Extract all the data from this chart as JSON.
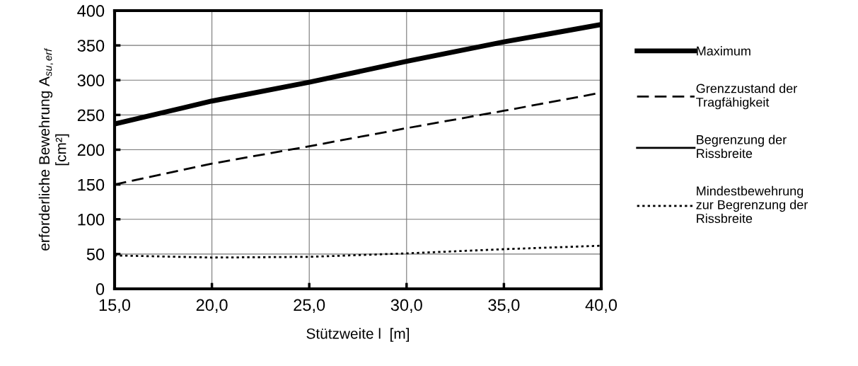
{
  "chart_data": {
    "type": "line",
    "xlabel": "Stützweite l  [m]",
    "ylabel": "erforderliche Bewehrung A$_{su,erf}$\n[cm²]",
    "x": [
      15,
      20,
      25,
      30,
      35,
      40
    ],
    "series": [
      {
        "name": "Maximum",
        "color": "#000000",
        "line_style": "solid",
        "values": [
          237,
          270,
          297,
          327,
          355,
          380
        ]
      },
      {
        "name": "Grenzzustand der\nTragfähigkeit",
        "color": "#000000",
        "line_style": "dashed",
        "values": [
          150,
          180,
          205,
          231,
          256,
          282
        ]
      },
      {
        "name": "Begrenzung der\nRissbreite",
        "color": "#000000",
        "line_style": "solid",
        "values": [
          null,
          null,
          null,
          null,
          null,
          null
        ]
      },
      {
        "name": "Mindestbewehrung\nzur Begrenzung der\nRissbreite",
        "color": "#000000",
        "line_style": "dotted",
        "values": [
          48,
          45,
          46,
          51,
          57,
          62
        ]
      }
    ],
    "xlim": [
      15,
      40
    ],
    "xticks": [
      {
        "value": 15,
        "label": "15,0"
      },
      {
        "value": 20,
        "label": "20,0"
      },
      {
        "value": 25,
        "label": "25,0"
      },
      {
        "value": 30,
        "label": "30,0"
      },
      {
        "value": 35,
        "label": "35,0"
      },
      {
        "value": 40,
        "label": "40,0"
      }
    ],
    "ylim": [
      0,
      400
    ],
    "yticks": [
      0,
      50,
      100,
      150,
      200,
      250,
      300,
      350,
      400
    ],
    "grid": true,
    "legend": "right"
  }
}
